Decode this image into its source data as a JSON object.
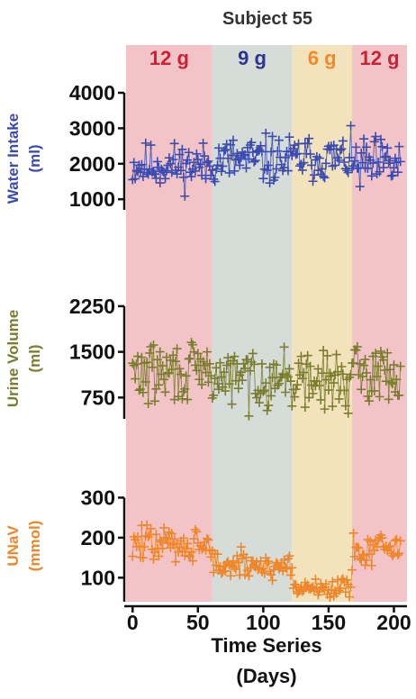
{
  "title": "Subject 55",
  "xlabel_line1": "Time Series",
  "xlabel_line2": "(Days)",
  "chart_data": {
    "type": "scatter",
    "title": "Subject 55",
    "xlabel": "Time Series (Days)",
    "xlim": [
      -5,
      210
    ],
    "xticks": [
      0,
      50,
      100,
      150,
      200
    ],
    "bands": [
      {
        "label": "12 g",
        "x_start": -5,
        "x_end": 61,
        "color": "#f2c4c8",
        "label_color": "#cc2233"
      },
      {
        "label": "9 g",
        "x_start": 61,
        "x_end": 122,
        "color": "#d6dcd8",
        "label_color": "#2e3591"
      },
      {
        "label": "6 g",
        "x_start": 122,
        "x_end": 168,
        "color": "#f3e3bc",
        "label_color": "#f28a26"
      },
      {
        "label": "12 g",
        "x_start": 168,
        "x_end": 210,
        "color": "#f2c4c8",
        "label_color": "#cc2233"
      }
    ],
    "panels": [
      {
        "name": "water",
        "ylabel_line1": "Water Intake",
        "ylabel_line2": "(ml)",
        "color": "#3b4bb0",
        "ylim": [
          700,
          4000
        ],
        "yticks": [
          1000,
          2000,
          3000,
          4000
        ],
        "segments": [
          {
            "x0": 0,
            "x1": 60,
            "mean": 1950,
            "spread": 420
          },
          {
            "x0": 61,
            "x1": 122,
            "mean": 2100,
            "spread": 460
          },
          {
            "x0": 123,
            "x1": 167,
            "mean": 2150,
            "spread": 430
          },
          {
            "x0": 168,
            "x1": 205,
            "mean": 1950,
            "spread": 520
          }
        ],
        "seed": 11
      },
      {
        "name": "urine",
        "ylabel_line1": "Urine Volume",
        "ylabel_line2": "(ml)",
        "color": "#7a7d2e",
        "ylim": [
          400,
          2500
        ],
        "yticks": [
          750,
          1500,
          2250
        ],
        "segments": [
          {
            "x0": 0,
            "x1": 60,
            "mean": 1150,
            "spread": 330
          },
          {
            "x0": 61,
            "x1": 122,
            "mean": 1080,
            "spread": 320
          },
          {
            "x0": 123,
            "x1": 167,
            "mean": 1020,
            "spread": 300
          },
          {
            "x0": 168,
            "x1": 205,
            "mean": 1150,
            "spread": 300
          }
        ],
        "seed": 29
      },
      {
        "name": "unav",
        "ylabel_line1": "UNaV",
        "ylabel_line2": "(mmol)",
        "color": "#f0862a",
        "ylim": [
          40,
          310
        ],
        "yticks": [
          100,
          200,
          300
        ],
        "segments": [
          {
            "x0": 0,
            "x1": 60,
            "mean": 185,
            "spread": 30
          },
          {
            "x0": 61,
            "x1": 122,
            "mean": 130,
            "spread": 25
          },
          {
            "x0": 123,
            "x1": 167,
            "mean": 75,
            "spread": 20
          },
          {
            "x0": 168,
            "x1": 205,
            "mean": 175,
            "spread": 32
          }
        ],
        "seed": 47
      }
    ]
  }
}
